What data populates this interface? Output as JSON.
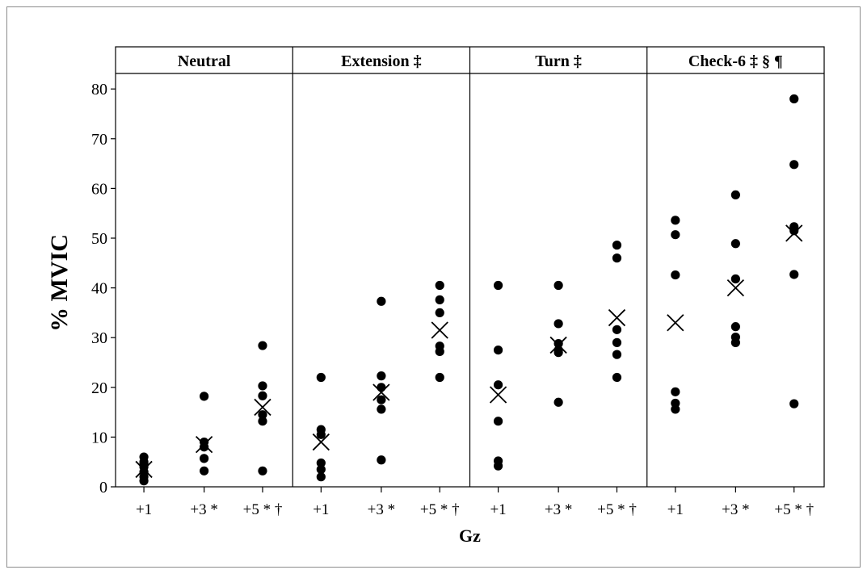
{
  "chart_data": {
    "type": "scatter",
    "xlabel": "Gz",
    "ylabel": "% MVIC",
    "ylim": [
      0,
      83
    ],
    "yticks": [
      0,
      10,
      20,
      30,
      40,
      50,
      60,
      70,
      80
    ],
    "grid": false,
    "legend": "none",
    "marker_colors": {
      "point": "#000000",
      "mean": "#000000"
    },
    "panels": [
      {
        "title": "Neutral",
        "categories": [
          "+1",
          "+3 *",
          "+5 * †"
        ],
        "points": [
          [
            6,
            5,
            4.5,
            4,
            3,
            2,
            1.2
          ],
          [
            18.2,
            9,
            8,
            5.7,
            3.2
          ],
          [
            28.4,
            20.3,
            18.3,
            14.5,
            13.2,
            3.2
          ]
        ],
        "means": [
          3.5,
          8.5,
          16
        ]
      },
      {
        "title": "Extension ‡",
        "categories": [
          "+1",
          "+3 *",
          "+5 * †"
        ],
        "points": [
          [
            22,
            11.5,
            10.5,
            4.8,
            3.5,
            2
          ],
          [
            37.3,
            22.3,
            20,
            17.5,
            15.6,
            5.4
          ],
          [
            40.5,
            37.6,
            35,
            28.3,
            27.2,
            22
          ]
        ],
        "means": [
          9,
          19,
          31.5
        ]
      },
      {
        "title": "Turn ‡",
        "categories": [
          "+1",
          "+3 *",
          "+5 * †"
        ],
        "points": [
          [
            40.5,
            27.5,
            20.5,
            13.2,
            5.2,
            4.2
          ],
          [
            40.5,
            32.8,
            28.8,
            27.5,
            27,
            17
          ],
          [
            48.6,
            46,
            31.6,
            29,
            26.6,
            22
          ]
        ],
        "means": [
          18.5,
          28.5,
          34
        ]
      },
      {
        "title": "Check-6 ‡ § ¶",
        "categories": [
          "+1",
          "+3 *",
          "+5 * †"
        ],
        "points": [
          [
            53.6,
            50.7,
            42.6,
            19.1,
            16.8,
            15.6
          ],
          [
            58.7,
            48.9,
            41.8,
            32.2,
            30.1,
            29
          ],
          [
            78,
            64.8,
            52.3,
            51.5,
            42.7,
            16.7
          ]
        ],
        "means": [
          33,
          40,
          51
        ]
      }
    ]
  }
}
